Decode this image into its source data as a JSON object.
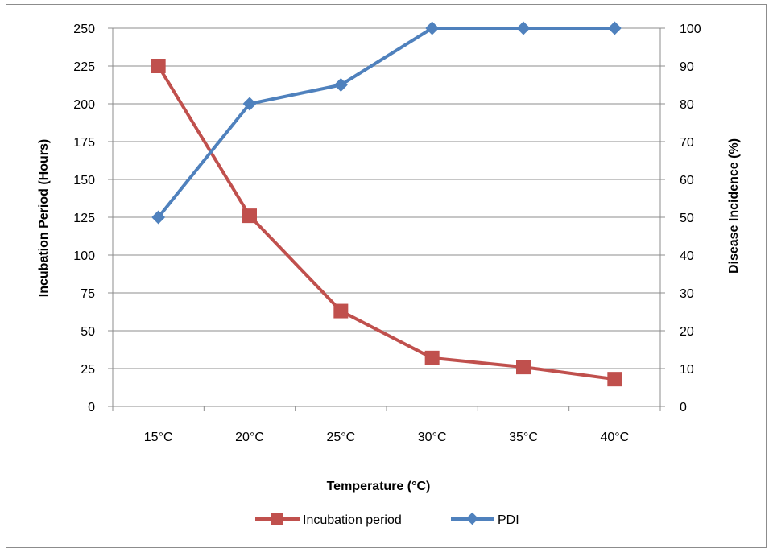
{
  "chart_data": {
    "type": "line",
    "categories": [
      "15°C",
      "20°C",
      "25°C",
      "30°C",
      "35°C",
      "40°C"
    ],
    "series": [
      {
        "name": "Incubation period",
        "axis": "left",
        "marker": "square",
        "color": "#c0504d",
        "values": [
          225,
          126,
          63,
          32,
          26,
          18
        ]
      },
      {
        "name": "PDI",
        "axis": "right",
        "marker": "diamond",
        "color": "#4f81bd",
        "values": [
          50,
          80,
          85,
          100,
          100,
          100
        ]
      }
    ],
    "xlabel": "Temperature (°C)",
    "ylabel": "Incubation Period (Hours)",
    "y2label": "Disease Incidence (%)",
    "ylim": [
      0,
      250
    ],
    "y2lim": [
      0,
      100
    ],
    "yticks": [
      "0",
      "25",
      "50",
      "75",
      "100",
      "125",
      "150",
      "175",
      "200",
      "225",
      "250"
    ],
    "y2ticks": [
      "0",
      "10",
      "20",
      "30",
      "40",
      "50",
      "60",
      "70",
      "80",
      "90",
      "100"
    ],
    "grid": "horizontal",
    "gridColor": "#8c8c8c",
    "legend": "bottom"
  }
}
